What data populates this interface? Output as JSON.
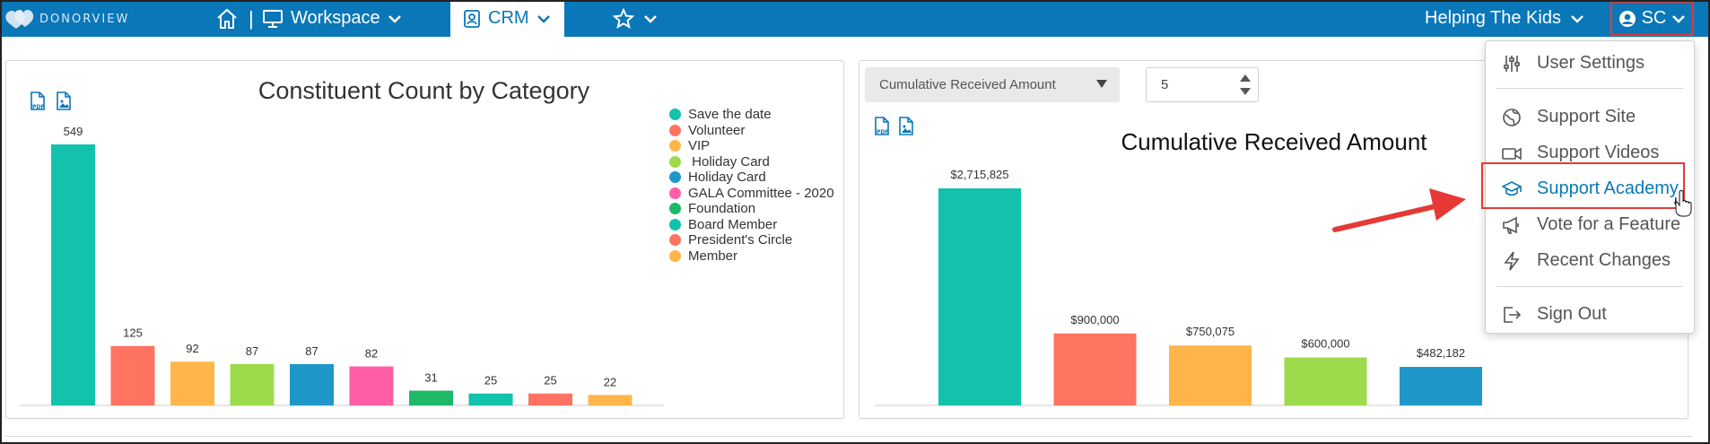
{
  "colors": {
    "brand": "#0a77b8",
    "teal": "#12c2ad",
    "salmon": "#ff7360",
    "orange": "#ffb54a",
    "green": "#9edb4c",
    "blue": "#1f98c9",
    "pink": "#ff5ea6",
    "darkgreen": "#1db868",
    "highlight": "#e53935"
  },
  "topbar": {
    "logo_text": "DONORVIEW",
    "separator": "|",
    "workspace_label": "Workspace",
    "crm_label": "CRM",
    "org_label": "Helping The Kids",
    "user_initials": "SC"
  },
  "left_panel": {
    "export_pdf_icon": "pdf-icon",
    "export_image_icon": "image-icon",
    "title": "Constituent Count by Category"
  },
  "right_panel": {
    "select_value": "Cumulative Received Amount",
    "number_value": "5",
    "title": "Cumulative Received Amount"
  },
  "chart_data": [
    {
      "type": "bar",
      "title": "Constituent Count by Category",
      "categories": [
        "Save the date",
        "Volunteer",
        "VIP",
        " Holiday Card",
        "Holiday Card",
        "GALA Committee - 2020",
        "Foundation",
        "Board Member",
        "President's Circle",
        "Member"
      ],
      "values": [
        549,
        125,
        92,
        87,
        87,
        82,
        31,
        25,
        25,
        22
      ],
      "value_labels": [
        "549",
        "125",
        "92",
        "87",
        "87",
        "82",
        "31",
        "25",
        "25",
        "22"
      ],
      "colors": [
        "#12c2ad",
        "#ff7360",
        "#ffb54a",
        "#9edb4c",
        "#1f98c9",
        "#ff5ea6",
        "#1db868",
        "#12c2ad",
        "#ff7360",
        "#ffb54a"
      ],
      "legend": "right",
      "ylim": [
        0,
        549
      ]
    },
    {
      "type": "bar",
      "title": "Cumulative Received Amount",
      "categories": [
        "",
        "",
        "",
        "",
        ""
      ],
      "values": [
        2715825,
        900000,
        750075,
        600000,
        482182
      ],
      "value_labels": [
        "$2,715,825",
        "$900,000",
        "$750,075",
        "$600,000",
        "$482,182"
      ],
      "colors": [
        "#12c2ad",
        "#ff7360",
        "#ffb54a",
        "#9edb4c",
        "#1f98c9"
      ],
      "ylim": [
        0,
        2715825
      ]
    }
  ],
  "dropdown": {
    "items": [
      {
        "label": "User Settings",
        "icon": "sliders-icon"
      },
      {
        "label": "Support Site",
        "icon": "globe-icon"
      },
      {
        "label": "Support Videos",
        "icon": "video-icon"
      },
      {
        "label": "Support Academy",
        "icon": "graduation-cap-icon"
      },
      {
        "label": "Vote for a Feature",
        "icon": "megaphone-icon"
      },
      {
        "label": "Recent Changes",
        "icon": "bolt-icon"
      },
      {
        "label": "Sign Out",
        "icon": "sign-out-icon"
      }
    ]
  }
}
